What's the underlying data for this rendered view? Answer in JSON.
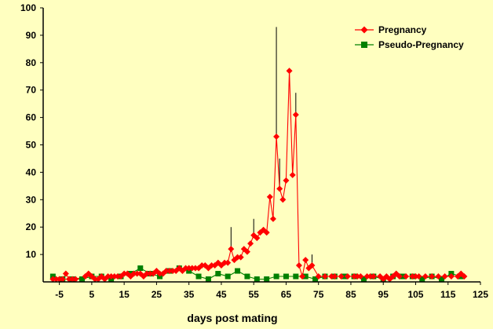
{
  "chart_data": {
    "type": "line",
    "title": "",
    "xlabel": "days post mating",
    "ylabel": "",
    "xlim": [
      -10,
      125
    ],
    "ylim": [
      0,
      100
    ],
    "x_ticks": [
      -5,
      5,
      15,
      25,
      35,
      45,
      55,
      65,
      75,
      85,
      95,
      105,
      115,
      125
    ],
    "y_ticks": [
      10,
      20,
      30,
      40,
      50,
      60,
      70,
      80,
      90,
      100
    ],
    "grid": false,
    "legend_position": "top-right",
    "series": [
      {
        "name": "Pregnancy",
        "color": "#FF0000",
        "marker": "diamond",
        "x": [
          -7,
          -6,
          -5,
          -4,
          -3,
          -2,
          -1,
          0,
          3,
          4,
          5,
          6,
          7,
          8,
          9,
          10,
          11,
          12,
          13,
          14,
          15,
          16,
          17,
          18,
          19,
          20,
          21,
          22,
          23,
          24,
          25,
          26,
          27,
          28,
          29,
          30,
          31,
          32,
          33,
          34,
          35,
          36,
          37,
          38,
          39,
          40,
          41,
          42,
          43,
          44,
          45,
          46,
          47,
          48,
          49,
          50,
          51,
          52,
          53,
          54,
          55,
          56,
          57,
          58,
          59,
          60,
          61,
          62,
          63,
          64,
          65,
          66,
          67,
          68,
          69,
          70,
          71,
          72,
          73,
          75,
          77,
          79,
          80,
          82,
          84,
          86,
          87,
          88,
          90,
          91,
          92,
          94,
          95,
          96,
          97,
          98,
          99,
          100,
          102,
          104,
          105,
          106,
          108,
          110,
          112,
          114,
          116,
          118,
          119,
          120
        ],
        "y": [
          1,
          1,
          1,
          1,
          3,
          1,
          1,
          1,
          2,
          3,
          2,
          1,
          1,
          2,
          1,
          2,
          2,
          2,
          2,
          2,
          3,
          3,
          2,
          3,
          3,
          3,
          2,
          3,
          3,
          3,
          4,
          3,
          3,
          4,
          4,
          4,
          4,
          5,
          4,
          5,
          5,
          5,
          5,
          5,
          6,
          6,
          5,
          6,
          6,
          7,
          6,
          7,
          7,
          12,
          8,
          9,
          9,
          12,
          11,
          14,
          17,
          16,
          18,
          19,
          18,
          31,
          23,
          53,
          34,
          30,
          37,
          77,
          39,
          61,
          6,
          2,
          8,
          5,
          6,
          2,
          2,
          2,
          2,
          2,
          2,
          2,
          2,
          2,
          2,
          2,
          2,
          2,
          1,
          2,
          1,
          2,
          3,
          2,
          2,
          2,
          2,
          2,
          2,
          2,
          2,
          2,
          2,
          2,
          3,
          2
        ],
        "error": [
          0,
          0,
          0,
          0,
          0,
          0,
          0,
          0,
          0,
          0,
          0,
          0,
          0,
          0,
          0,
          0,
          0,
          0,
          0,
          0,
          0,
          0,
          0,
          0,
          0,
          0,
          0,
          0,
          0,
          0,
          0,
          0,
          0,
          0,
          0,
          0,
          0,
          0,
          0,
          0,
          0,
          0,
          0,
          0,
          0,
          0,
          0,
          0,
          0,
          0,
          0,
          0,
          0,
          8,
          0,
          0,
          0,
          0,
          0,
          0,
          6,
          0,
          0,
          0,
          0,
          0,
          0,
          40,
          11,
          0,
          0,
          0,
          0,
          8,
          0,
          0,
          0,
          0,
          4,
          0,
          0,
          0,
          0,
          0,
          0,
          0,
          0,
          0,
          0,
          0,
          0,
          0,
          0,
          0,
          0,
          0,
          0,
          0,
          0,
          0,
          0,
          0,
          0,
          0,
          0,
          0,
          0,
          0,
          0,
          0
        ]
      },
      {
        "name": "Pseudo-Pregnancy",
        "color": "#008000",
        "marker": "square",
        "x": [
          -7,
          -4,
          -1,
          2,
          5,
          8,
          11,
          14,
          17,
          20,
          23,
          26,
          29,
          32,
          35,
          38,
          41,
          44,
          47,
          50,
          53,
          56,
          59,
          62,
          65,
          68,
          71,
          74,
          77,
          80,
          83,
          86,
          89,
          92,
          95,
          98,
          101,
          104,
          107,
          110,
          113,
          116,
          119
        ],
        "y": [
          2,
          1,
          1,
          1,
          2,
          2,
          1,
          2,
          3,
          5,
          3,
          2,
          4,
          5,
          4,
          2,
          1,
          3,
          2,
          4,
          2,
          1,
          1,
          2,
          2,
          2,
          2,
          1,
          2,
          2,
          2,
          2,
          1,
          2,
          1,
          2,
          2,
          2,
          1,
          2,
          1,
          3,
          2
        ]
      }
    ]
  }
}
